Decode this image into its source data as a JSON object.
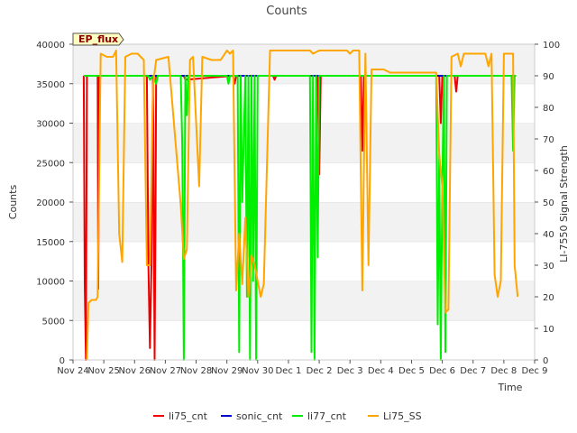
{
  "chart_data": {
    "type": "line",
    "title": "Counts",
    "badge": "EP_flux",
    "xlabel": "Time",
    "ylabel": "Counts",
    "y2label": "LI-7550 Signal Strength",
    "xlim": [
      0,
      15
    ],
    "ylim": [
      0,
      40000
    ],
    "y2lim": [
      0,
      100
    ],
    "xticks": [
      {
        "v": 0,
        "label": "Nov 24"
      },
      {
        "v": 1,
        "label": "Nov 25"
      },
      {
        "v": 2,
        "label": "Nov 26"
      },
      {
        "v": 3,
        "label": "Nov 27"
      },
      {
        "v": 4,
        "label": "Nov 28"
      },
      {
        "v": 5,
        "label": "Nov 29"
      },
      {
        "v": 6,
        "label": "Nov 30"
      },
      {
        "v": 7,
        "label": "Dec 1"
      },
      {
        "v": 8,
        "label": "Dec 2"
      },
      {
        "v": 9,
        "label": "Dec 3"
      },
      {
        "v": 10,
        "label": "Dec 4"
      },
      {
        "v": 11,
        "label": "Dec 5"
      },
      {
        "v": 12,
        "label": "Dec 6"
      },
      {
        "v": 13,
        "label": "Dec 7"
      },
      {
        "v": 14,
        "label": "Dec 8"
      },
      {
        "v": 15,
        "label": "Dec 9"
      }
    ],
    "yticks": [
      0,
      5000,
      10000,
      15000,
      20000,
      25000,
      30000,
      35000,
      40000
    ],
    "y2ticks": [
      0,
      10,
      20,
      30,
      40,
      50,
      60,
      70,
      80,
      90,
      100
    ],
    "series": [
      {
        "name": "li75_cnt",
        "color": "#ee0000",
        "axis": "left",
        "points": [
          [
            0.35,
            36000
          ],
          [
            0.38,
            9500
          ],
          [
            0.42,
            0
          ],
          [
            0.45,
            36000
          ],
          [
            0.5,
            36000
          ],
          [
            0.8,
            36000
          ],
          [
            0.82,
            9000
          ],
          [
            0.85,
            36000
          ],
          [
            2.4,
            36000
          ],
          [
            2.45,
            12000
          ],
          [
            2.5,
            1500
          ],
          [
            2.55,
            12000
          ],
          [
            2.6,
            36000
          ],
          [
            2.65,
            0
          ],
          [
            2.68,
            18000
          ],
          [
            2.7,
            36000
          ],
          [
            3.6,
            36000
          ],
          [
            3.65,
            35500
          ],
          [
            5.2,
            36000
          ],
          [
            5.25,
            35000
          ],
          [
            5.3,
            36000
          ],
          [
            6.5,
            36000
          ],
          [
            6.55,
            35500
          ],
          [
            6.6,
            36000
          ],
          [
            7.95,
            36000
          ],
          [
            8.0,
            23500
          ],
          [
            8.05,
            36000
          ],
          [
            9.35,
            36000
          ],
          [
            9.4,
            26500
          ],
          [
            9.45,
            36000
          ],
          [
            11.9,
            36000
          ],
          [
            11.95,
            30000
          ],
          [
            12.0,
            36000
          ],
          [
            12.4,
            36000
          ],
          [
            12.45,
            34000
          ],
          [
            12.5,
            36000
          ],
          [
            14.4,
            36000
          ]
        ]
      },
      {
        "name": "sonic_cnt",
        "color": "#0000cc",
        "axis": "left",
        "points": [
          [
            0.35,
            36000
          ],
          [
            14.4,
            36000
          ]
        ]
      },
      {
        "name": "li77_cnt",
        "color": "#00ee00",
        "axis": "left",
        "points": [
          [
            0.35,
            36000
          ],
          [
            2.45,
            36000
          ],
          [
            2.5,
            35500
          ],
          [
            2.6,
            36000
          ],
          [
            2.7,
            35000
          ],
          [
            2.75,
            36000
          ],
          [
            3.5,
            36000
          ],
          [
            3.55,
            27000
          ],
          [
            3.6,
            0
          ],
          [
            3.65,
            36000
          ],
          [
            3.7,
            31000
          ],
          [
            3.75,
            36000
          ],
          [
            5.0,
            36000
          ],
          [
            5.05,
            35000
          ],
          [
            5.1,
            36000
          ],
          [
            5.35,
            36000
          ],
          [
            5.4,
            1000
          ],
          [
            5.45,
            36000
          ],
          [
            5.5,
            20000
          ],
          [
            5.6,
            36000
          ],
          [
            5.65,
            8000
          ],
          [
            5.7,
            36000
          ],
          [
            5.75,
            0
          ],
          [
            5.8,
            36000
          ],
          [
            5.85,
            10000
          ],
          [
            5.9,
            36000
          ],
          [
            5.95,
            0
          ],
          [
            6.0,
            36000
          ],
          [
            7.7,
            36000
          ],
          [
            7.75,
            1000
          ],
          [
            7.8,
            36000
          ],
          [
            7.85,
            0
          ],
          [
            7.9,
            36000
          ],
          [
            7.95,
            13000
          ],
          [
            8.0,
            36000
          ],
          [
            11.8,
            36000
          ],
          [
            11.85,
            4500
          ],
          [
            11.9,
            26000
          ],
          [
            11.95,
            0
          ],
          [
            12.0,
            22000
          ],
          [
            12.05,
            36000
          ],
          [
            12.1,
            1000
          ],
          [
            12.15,
            36000
          ],
          [
            14.25,
            36000
          ],
          [
            14.3,
            26500
          ],
          [
            14.35,
            36000
          ],
          [
            14.4,
            36000
          ]
        ]
      },
      {
        "name": "Li75_SS",
        "color": "#ffa500",
        "axis": "right",
        "points": [
          [
            0.45,
            0
          ],
          [
            0.5,
            18
          ],
          [
            0.6,
            19
          ],
          [
            0.75,
            19
          ],
          [
            0.8,
            20
          ],
          [
            0.9,
            97
          ],
          [
            1.1,
            96
          ],
          [
            1.3,
            96
          ],
          [
            1.4,
            98
          ],
          [
            1.5,
            40
          ],
          [
            1.6,
            31
          ],
          [
            1.7,
            96
          ],
          [
            1.9,
            97
          ],
          [
            2.1,
            97
          ],
          [
            2.3,
            95
          ],
          [
            2.4,
            30
          ],
          [
            2.5,
            30
          ],
          [
            2.6,
            87
          ],
          [
            2.7,
            95
          ],
          [
            3.1,
            96
          ],
          [
            3.5,
            49
          ],
          [
            3.6,
            32
          ],
          [
            3.7,
            35
          ],
          [
            3.8,
            95
          ],
          [
            3.9,
            96
          ],
          [
            4.1,
            55
          ],
          [
            4.2,
            96
          ],
          [
            4.5,
            95
          ],
          [
            4.8,
            95
          ],
          [
            5.0,
            98
          ],
          [
            5.1,
            97
          ],
          [
            5.2,
            98
          ],
          [
            5.3,
            22
          ],
          [
            5.4,
            40
          ],
          [
            5.5,
            24
          ],
          [
            5.6,
            45
          ],
          [
            5.7,
            20
          ],
          [
            5.8,
            33
          ],
          [
            5.9,
            30
          ],
          [
            6.1,
            20
          ],
          [
            6.2,
            24
          ],
          [
            6.4,
            98
          ],
          [
            7.5,
            98
          ],
          [
            7.7,
            98
          ],
          [
            7.8,
            97
          ],
          [
            8.0,
            98
          ],
          [
            8.2,
            98
          ],
          [
            8.9,
            98
          ],
          [
            9.0,
            97
          ],
          [
            9.1,
            98
          ],
          [
            9.3,
            98
          ],
          [
            9.4,
            22
          ],
          [
            9.5,
            97
          ],
          [
            9.6,
            30
          ],
          [
            9.7,
            92
          ],
          [
            10.1,
            92
          ],
          [
            10.3,
            91
          ],
          [
            11.6,
            91
          ],
          [
            11.8,
            91
          ],
          [
            11.9,
            65
          ],
          [
            12.0,
            55
          ],
          [
            12.1,
            15
          ],
          [
            12.2,
            16
          ],
          [
            12.3,
            96
          ],
          [
            12.5,
            97
          ],
          [
            12.6,
            93
          ],
          [
            12.7,
            97
          ],
          [
            13.2,
            97
          ],
          [
            13.4,
            97
          ],
          [
            13.5,
            93
          ],
          [
            13.6,
            97
          ],
          [
            13.7,
            27
          ],
          [
            13.8,
            20
          ],
          [
            13.9,
            25
          ],
          [
            14.0,
            97
          ],
          [
            14.3,
            97
          ],
          [
            14.35,
            30
          ],
          [
            14.45,
            20
          ]
        ]
      }
    ],
    "legend": {
      "placement": "bottom-center",
      "items": [
        "li75_cnt",
        "sonic_cnt",
        "li77_cnt",
        "Li75_SS"
      ]
    },
    "grid": "horizontal-bands"
  }
}
